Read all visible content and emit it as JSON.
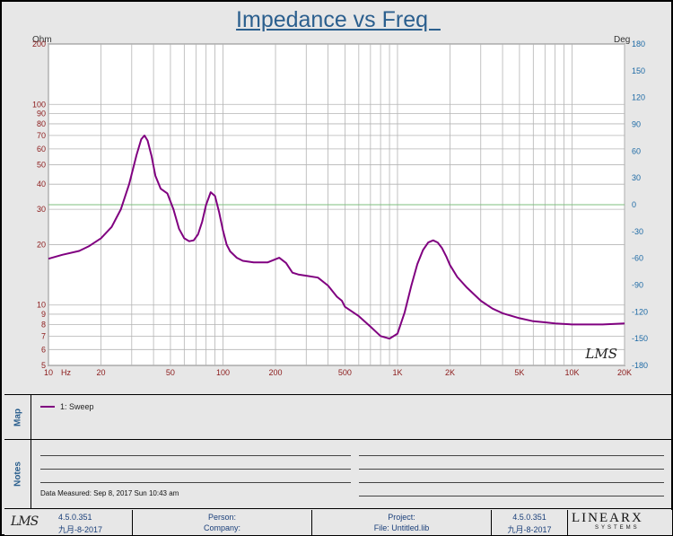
{
  "chart_data": {
    "type": "line",
    "title": "Impedance vs Freq  ",
    "y_unit_left": "Ohm",
    "y_unit_right": "Deg",
    "x_scale": "log",
    "y_scale": "log",
    "xlim": [
      10,
      20000
    ],
    "ylim": [
      5,
      200
    ],
    "y2lim": [
      -180,
      180
    ],
    "x_ticks": [
      {
        "value": 10,
        "label": "10"
      },
      {
        "value": 20,
        "label": "20"
      },
      {
        "value": 50,
        "label": "50"
      },
      {
        "value": 100,
        "label": "100"
      },
      {
        "value": 200,
        "label": "200"
      },
      {
        "value": 500,
        "label": "500"
      },
      {
        "value": 1000,
        "label": "1K"
      },
      {
        "value": 2000,
        "label": "2K"
      },
      {
        "value": 5000,
        "label": "5K"
      },
      {
        "value": 10000,
        "label": "10K"
      },
      {
        "value": 20000,
        "label": "20K"
      }
    ],
    "x_unit_label": "Hz",
    "y_ticks": [
      200,
      100,
      90,
      80,
      70,
      60,
      50,
      40,
      30,
      20,
      10,
      9,
      8,
      7,
      6,
      5
    ],
    "y2_ticks": [
      180,
      150,
      120,
      90,
      60,
      30,
      0,
      -30,
      -60,
      -90,
      -120,
      -150,
      -180
    ],
    "grid": true,
    "zero_phase_line_color": "#7dbf7d",
    "series": [
      {
        "name": "1: Sweep",
        "color": "#800080",
        "x": [
          10,
          12,
          15,
          17,
          20,
          23,
          26,
          29,
          32,
          34,
          35.5,
          37,
          39,
          41,
          44,
          48,
          52,
          56,
          60,
          64,
          68,
          72,
          76,
          80,
          85,
          90,
          95,
          100,
          105,
          110,
          120,
          130,
          150,
          180,
          210,
          230,
          250,
          270,
          300,
          350,
          400,
          450,
          480,
          500,
          600,
          700,
          800,
          900,
          1000,
          1100,
          1200,
          1300,
          1400,
          1500,
          1600,
          1700,
          1800,
          1900,
          2000,
          2200,
          2500,
          3000,
          3500,
          4000,
          5000,
          6000,
          7000,
          8000,
          10000,
          12000,
          15000,
          20000
        ],
        "y": [
          17,
          17.8,
          18.6,
          19.6,
          21.5,
          24.5,
          30,
          40,
          56,
          67,
          70,
          66,
          55,
          44,
          38,
          36,
          30,
          24,
          21.5,
          20.8,
          21,
          22.5,
          26,
          31.5,
          36.5,
          35,
          29,
          23.5,
          20,
          18.5,
          17.2,
          16.6,
          16.3,
          16.3,
          17.2,
          16.2,
          14.5,
          14.2,
          14,
          13.7,
          12.5,
          11,
          10.5,
          9.8,
          8.8,
          7.8,
          7.0,
          6.8,
          7.2,
          9.2,
          12.5,
          16,
          18.8,
          20.5,
          21,
          20.5,
          19.2,
          17.5,
          15.8,
          13.8,
          12.2,
          10.5,
          9.6,
          9.1,
          8.6,
          8.3,
          8.2,
          8.1,
          8.0,
          8.0,
          8.0,
          8.1
        ]
      }
    ]
  },
  "watermark": "LMS",
  "map_panel": {
    "label": "Map",
    "legend_entry": "1: Sweep"
  },
  "notes_panel": {
    "label": "Notes",
    "measured": "Data Measured: Sep 8, 2017 Sun 10:43 am"
  },
  "footer": {
    "logo_left": "LMS",
    "version_left": "4.5.0.351",
    "date_left": "九月-8-2017",
    "person_label": "Person:",
    "company_label": "Company:",
    "project_label": "Project:",
    "file_label": "File: Untitled.lib",
    "version_right": "4.5.0.351",
    "date_right": "九月-8-2017",
    "brand_main": "LINEARX",
    "brand_sub": "SYSTEMS"
  }
}
